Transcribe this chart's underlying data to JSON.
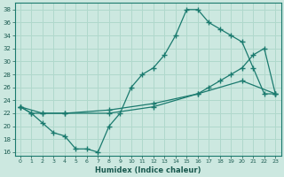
{
  "xlabel": "Humidex (Indice chaleur)",
  "bg_color": "#cce8e0",
  "grid_color": "#b0d8cc",
  "line_color": "#1a7a6e",
  "xlim": [
    -0.5,
    23.5
  ],
  "ylim": [
    15.5,
    39
  ],
  "yticks": [
    16,
    18,
    20,
    22,
    24,
    26,
    28,
    30,
    32,
    34,
    36,
    38
  ],
  "xticks": [
    0,
    1,
    2,
    3,
    4,
    5,
    6,
    7,
    8,
    9,
    10,
    11,
    12,
    13,
    14,
    15,
    16,
    17,
    18,
    19,
    20,
    21,
    22,
    23
  ],
  "line1_x": [
    0,
    1,
    2,
    3,
    4,
    5,
    6,
    7,
    8,
    9,
    10,
    11,
    12,
    13,
    14,
    15,
    16,
    17,
    18,
    19,
    20,
    21,
    22,
    23
  ],
  "line1_y": [
    23,
    22,
    20.5,
    19,
    18.5,
    16.5,
    16.5,
    16,
    20,
    22,
    26,
    28,
    29,
    31,
    34,
    38,
    38,
    36,
    35,
    34,
    33,
    29,
    25,
    25
  ],
  "line2_x": [
    0,
    1,
    2,
    4,
    8,
    12,
    16,
    20,
    23
  ],
  "line2_y": [
    23,
    22,
    22,
    22,
    22.5,
    23.5,
    25,
    27,
    25
  ],
  "line3_x": [
    0,
    2,
    4,
    8,
    12,
    16,
    17,
    18,
    19,
    20,
    21,
    22,
    23
  ],
  "line3_y": [
    23,
    22,
    22,
    22,
    23,
    25,
    26,
    27,
    28,
    29,
    31,
    32,
    25
  ]
}
